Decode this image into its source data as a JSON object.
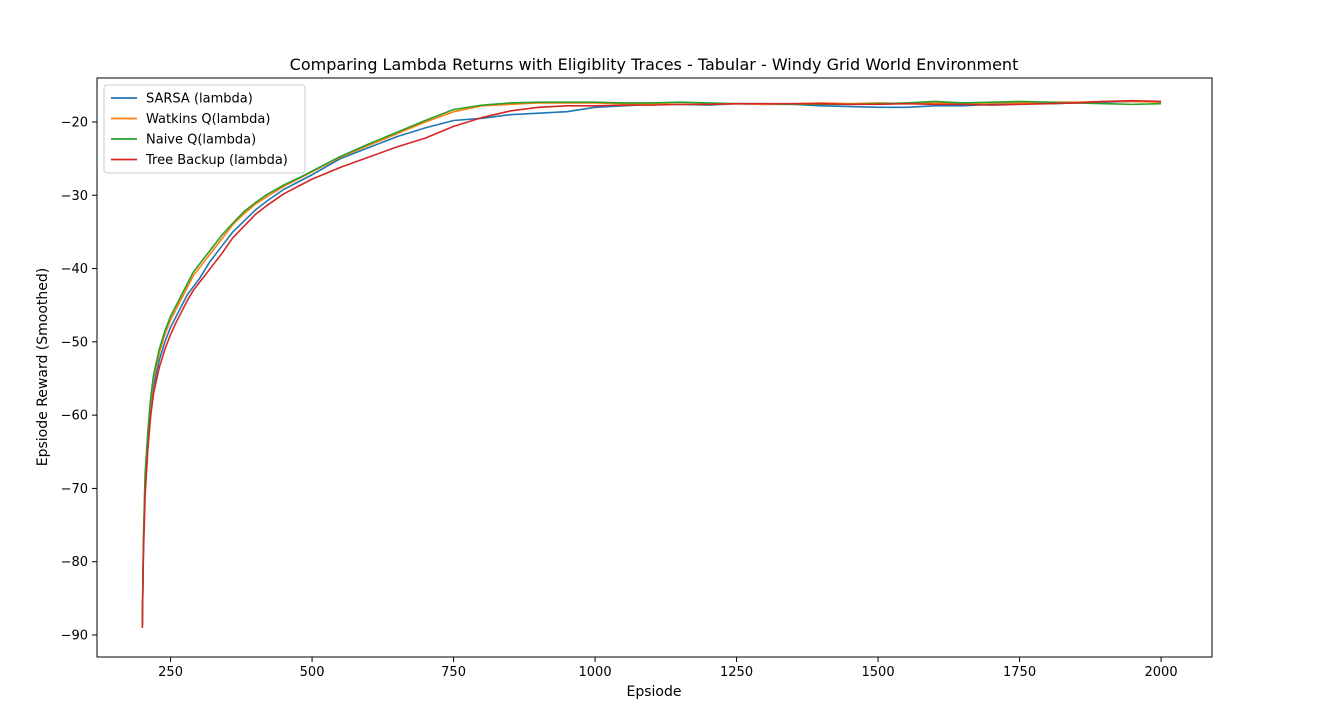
{
  "chart_data": {
    "type": "line",
    "title": "Comparing Lambda Returns with Eligiblity Traces - Tabular - Windy Grid World Environment",
    "xlabel": "Epsiode",
    "ylabel": "Epsiode Reward (Smoothed)",
    "xlim": [
      120,
      2090
    ],
    "ylim": [
      -93,
      -14
    ],
    "xticks": [
      250,
      500,
      750,
      1000,
      1250,
      1500,
      1750,
      2000
    ],
    "yticks": [
      -90,
      -80,
      -70,
      -60,
      -50,
      -40,
      -30,
      -20
    ],
    "grid": false,
    "legend_position": "top-left",
    "series": [
      {
        "name": "SARSA (lambda)",
        "color": "#1f77b4",
        "x": [
          200,
          202,
          205,
          210,
          215,
          220,
          230,
          240,
          250,
          260,
          270,
          280,
          290,
          300,
          320,
          340,
          360,
          380,
          400,
          420,
          450,
          480,
          500,
          550,
          600,
          650,
          700,
          750,
          800,
          850,
          900,
          950,
          1000,
          1050,
          1100,
          1150,
          1200,
          1250,
          1300,
          1350,
          1400,
          1450,
          1500,
          1550,
          1600,
          1650,
          1700,
          1750,
          1800,
          1850,
          1900,
          1950,
          2000
        ],
        "y": [
          -89,
          -78,
          -70,
          -63.5,
          -59,
          -56,
          -52.5,
          -50,
          -48,
          -46.5,
          -45,
          -43.5,
          -42.5,
          -41.5,
          -39,
          -37,
          -35,
          -33.5,
          -32,
          -30.8,
          -29.2,
          -28,
          -27.2,
          -25,
          -23.5,
          -22,
          -20.8,
          -19.8,
          -19.5,
          -19,
          -18.8,
          -18.6,
          -18,
          -17.8,
          -17.6,
          -17.6,
          -17.7,
          -17.5,
          -17.6,
          -17.6,
          -17.8,
          -17.9,
          -18,
          -18,
          -17.8,
          -17.8,
          -17.6,
          -17.5,
          -17.5,
          -17.4,
          -17.3,
          -17.2,
          -17.2
        ]
      },
      {
        "name": "Watkins Q(lambda)",
        "color": "#ff7f0e",
        "x": [
          200,
          202,
          205,
          210,
          215,
          220,
          230,
          240,
          250,
          260,
          270,
          280,
          290,
          300,
          320,
          340,
          360,
          380,
          400,
          420,
          450,
          480,
          500,
          550,
          600,
          650,
          700,
          750,
          800,
          850,
          900,
          950,
          1000,
          1050,
          1100,
          1150,
          1200,
          1250,
          1300,
          1350,
          1400,
          1450,
          1500,
          1550,
          1600,
          1650,
          1700,
          1750,
          1800,
          1850,
          1900,
          1950,
          2000
        ],
        "y": [
          -89,
          -78,
          -69,
          -62.5,
          -58,
          -55,
          -51.5,
          -49,
          -47,
          -45.5,
          -44,
          -42.5,
          -41,
          -40,
          -38,
          -36,
          -34,
          -32.5,
          -31.2,
          -30.2,
          -28.8,
          -27.6,
          -26.8,
          -24.8,
          -23.2,
          -21.6,
          -20,
          -18.6,
          -17.8,
          -17.6,
          -17.4,
          -17.4,
          -17.4,
          -17.5,
          -17.5,
          -17.6,
          -17.6,
          -17.5,
          -17.6,
          -17.5,
          -17.4,
          -17.5,
          -17.4,
          -17.5,
          -17.4,
          -17.5,
          -17.4,
          -17.4,
          -17.3,
          -17.3,
          -17.2,
          -17.2,
          -17.3
        ]
      },
      {
        "name": "Naive Q(lambda)",
        "color": "#2ca02c",
        "x": [
          200,
          202,
          205,
          210,
          215,
          220,
          230,
          240,
          250,
          260,
          270,
          280,
          290,
          300,
          320,
          340,
          360,
          380,
          400,
          420,
          450,
          480,
          500,
          550,
          600,
          650,
          700,
          750,
          800,
          850,
          900,
          950,
          1000,
          1050,
          1100,
          1150,
          1200,
          1250,
          1300,
          1350,
          1400,
          1450,
          1500,
          1550,
          1600,
          1650,
          1700,
          1750,
          1800,
          1850,
          1900,
          1950,
          2000
        ],
        "y": [
          -89,
          -77,
          -68,
          -62,
          -57.5,
          -54.5,
          -51,
          -48.5,
          -46.5,
          -45,
          -43.5,
          -42,
          -40.5,
          -39.5,
          -37.5,
          -35.5,
          -33.8,
          -32.2,
          -31,
          -29.9,
          -28.6,
          -27.5,
          -26.7,
          -24.7,
          -23,
          -21.4,
          -19.8,
          -18.3,
          -17.7,
          -17.4,
          -17.3,
          -17.3,
          -17.3,
          -17.4,
          -17.4,
          -17.3,
          -17.4,
          -17.5,
          -17.5,
          -17.6,
          -17.6,
          -17.6,
          -17.5,
          -17.4,
          -17.2,
          -17.4,
          -17.3,
          -17.2,
          -17.3,
          -17.4,
          -17.5,
          -17.6,
          -17.5
        ]
      },
      {
        "name": "Tree Backup (lambda)",
        "color": "#d62728",
        "x": [
          200,
          202,
          205,
          210,
          215,
          220,
          230,
          240,
          250,
          260,
          270,
          280,
          290,
          300,
          320,
          340,
          360,
          380,
          400,
          420,
          450,
          480,
          500,
          550,
          600,
          650,
          700,
          750,
          800,
          850,
          900,
          950,
          1000,
          1050,
          1100,
          1150,
          1200,
          1250,
          1300,
          1350,
          1400,
          1450,
          1500,
          1550,
          1600,
          1650,
          1700,
          1750,
          1800,
          1850,
          1900,
          1950,
          2000
        ],
        "y": [
          -89,
          -79,
          -71,
          -64.5,
          -60,
          -57,
          -53.5,
          -51,
          -49,
          -47.3,
          -45.8,
          -44.3,
          -43,
          -42,
          -40,
          -38,
          -35.8,
          -34.2,
          -32.6,
          -31.4,
          -29.8,
          -28.6,
          -27.8,
          -26.2,
          -24.8,
          -23.4,
          -22.2,
          -20.6,
          -19.4,
          -18.5,
          -18,
          -17.8,
          -17.8,
          -17.7,
          -17.7,
          -17.6,
          -17.6,
          -17.5,
          -17.5,
          -17.5,
          -17.5,
          -17.6,
          -17.6,
          -17.5,
          -17.6,
          -17.6,
          -17.7,
          -17.6,
          -17.5,
          -17.4,
          -17.2,
          -17.1,
          -17.2
        ]
      }
    ]
  }
}
